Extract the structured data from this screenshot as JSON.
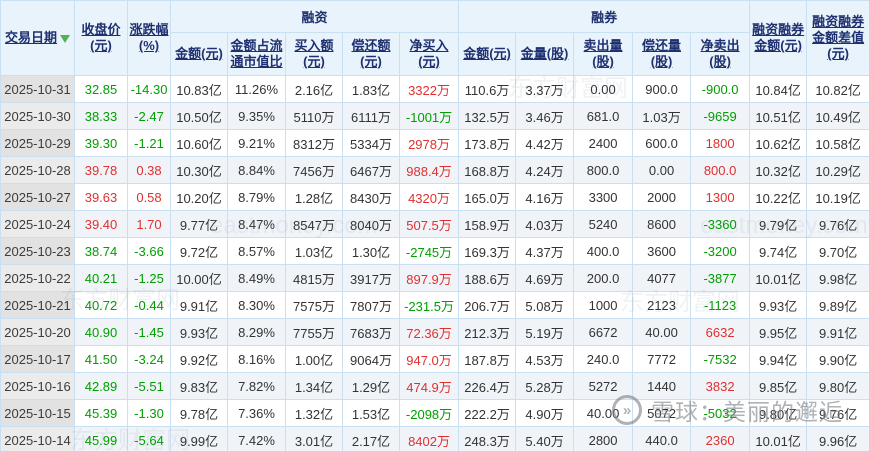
{
  "palette": {
    "up_red": "#e03030",
    "down_green": "#009e00",
    "header_text_navy": "#1f3070",
    "header_bg": "#e9f3fb",
    "grid_border": "#c9e0f2",
    "date_col_bg": "#e2e2e2",
    "zebra_row_bg": "#f0f4f8",
    "sort_arrow_green": "#54b054"
  },
  "header": {
    "date": "交易日期",
    "close": "收盘价\n(元)",
    "change": "涨跌幅\n(%)",
    "financing_group": "融资",
    "lending_group": "融券",
    "financing_cols": [
      "金额(元)",
      "金额占流\n通市值比",
      "买入额\n(元)",
      "偿还额\n(元)",
      "净买入\n(元)"
    ],
    "lending_cols": [
      "金额(元)",
      "金量(股)",
      "卖出量\n(股)",
      "偿还量\n(股)",
      "净卖出\n(股)"
    ],
    "balance": "融资融券\n金额(元)",
    "diff": "融资融券\n金额差值\n(元)"
  },
  "watermarks": {
    "brand": "东方财富网",
    "domain": "eastmoney.com",
    "xueqiu": "雪球：美丽的邂逅",
    "xueqiu_logo": "xueqiu-circle-logo"
  },
  "table": {
    "cell_names": [
      "close-price",
      "change-percent",
      "financing-amount",
      "financing-marketcap-ratio",
      "financing-buy-amount",
      "financing-repay-amount",
      "financing-net-buy",
      "lending-amount",
      "lending-volume",
      "lending-sell-volume",
      "lending-repay-volume",
      "lending-net-sell",
      "margin-balance",
      "margin-amount-diff"
    ],
    "rows": [
      {
        "date": "2025-10-31",
        "values": [
          "32.85",
          "-14.30",
          "10.83亿",
          "11.26%",
          "2.16亿",
          "1.83亿",
          "3322万",
          "110.6万",
          "3.37万",
          "0.00",
          "900.0",
          "-900.0",
          "10.84亿",
          "10.82亿"
        ],
        "colors": [
          "down",
          "down",
          null,
          null,
          null,
          null,
          "up",
          null,
          null,
          null,
          null,
          "down",
          null,
          null
        ]
      },
      {
        "date": "2025-10-30",
        "values": [
          "38.33",
          "-2.47",
          "10.50亿",
          "9.35%",
          "5110万",
          "6111万",
          "-1001万",
          "132.5万",
          "3.46万",
          "681.0",
          "1.03万",
          "-9659",
          "10.51亿",
          "10.49亿"
        ],
        "colors": [
          "down",
          "down",
          null,
          null,
          null,
          null,
          "down",
          null,
          null,
          null,
          null,
          "down",
          null,
          null
        ]
      },
      {
        "date": "2025-10-29",
        "values": [
          "39.30",
          "-1.21",
          "10.60亿",
          "9.21%",
          "8312万",
          "5334万",
          "2978万",
          "173.8万",
          "4.42万",
          "2400",
          "600.0",
          "1800",
          "10.62亿",
          "10.58亿"
        ],
        "colors": [
          "down",
          "down",
          null,
          null,
          null,
          null,
          "up",
          null,
          null,
          null,
          null,
          "up",
          null,
          null
        ]
      },
      {
        "date": "2025-10-28",
        "values": [
          "39.78",
          "0.38",
          "10.30亿",
          "8.84%",
          "7456万",
          "6467万",
          "988.4万",
          "168.8万",
          "4.24万",
          "800.0",
          "0.00",
          "800.0",
          "10.32亿",
          "10.29亿"
        ],
        "colors": [
          "up",
          "up",
          null,
          null,
          null,
          null,
          "up",
          null,
          null,
          null,
          null,
          "up",
          null,
          null
        ]
      },
      {
        "date": "2025-10-27",
        "values": [
          "39.63",
          "0.58",
          "10.20亿",
          "8.79%",
          "1.28亿",
          "8430万",
          "4320万",
          "165.0万",
          "4.16万",
          "3300",
          "2000",
          "1300",
          "10.22亿",
          "10.19亿"
        ],
        "colors": [
          "up",
          "up",
          null,
          null,
          null,
          null,
          "up",
          null,
          null,
          null,
          null,
          "up",
          null,
          null
        ]
      },
      {
        "date": "2025-10-24",
        "values": [
          "39.40",
          "1.70",
          "9.77亿",
          "8.47%",
          "8547万",
          "8040万",
          "507.5万",
          "158.9万",
          "4.03万",
          "5240",
          "8600",
          "-3360",
          "9.79亿",
          "9.76亿"
        ],
        "colors": [
          "up",
          "up",
          null,
          null,
          null,
          null,
          "up",
          null,
          null,
          null,
          null,
          "down",
          null,
          null
        ]
      },
      {
        "date": "2025-10-23",
        "values": [
          "38.74",
          "-3.66",
          "9.72亿",
          "8.57%",
          "1.03亿",
          "1.30亿",
          "-2745万",
          "169.3万",
          "4.37万",
          "400.0",
          "3600",
          "-3200",
          "9.74亿",
          "9.70亿"
        ],
        "colors": [
          "down",
          "down",
          null,
          null,
          null,
          null,
          "down",
          null,
          null,
          null,
          null,
          "down",
          null,
          null
        ]
      },
      {
        "date": "2025-10-22",
        "values": [
          "40.21",
          "-1.25",
          "10.00亿",
          "8.49%",
          "4815万",
          "3917万",
          "897.9万",
          "188.6万",
          "4.69万",
          "200.0",
          "4077",
          "-3877",
          "10.01亿",
          "9.98亿"
        ],
        "colors": [
          "down",
          "down",
          null,
          null,
          null,
          null,
          "up",
          null,
          null,
          null,
          null,
          "down",
          null,
          null
        ]
      },
      {
        "date": "2025-10-21",
        "values": [
          "40.72",
          "-0.44",
          "9.91亿",
          "8.30%",
          "7575万",
          "7807万",
          "-231.5万",
          "206.7万",
          "5.08万",
          "1000",
          "2123",
          "-1123",
          "9.93亿",
          "9.89亿"
        ],
        "colors": [
          "down",
          "down",
          null,
          null,
          null,
          null,
          "down",
          null,
          null,
          null,
          null,
          "down",
          null,
          null
        ]
      },
      {
        "date": "2025-10-20",
        "values": [
          "40.90",
          "-1.45",
          "9.93亿",
          "8.29%",
          "7755万",
          "7683万",
          "72.36万",
          "212.3万",
          "5.19万",
          "6672",
          "40.00",
          "6632",
          "9.95亿",
          "9.91亿"
        ],
        "colors": [
          "down",
          "down",
          null,
          null,
          null,
          null,
          "up",
          null,
          null,
          null,
          null,
          "up",
          null,
          null
        ]
      },
      {
        "date": "2025-10-17",
        "values": [
          "41.50",
          "-3.24",
          "9.92亿",
          "8.16%",
          "1.00亿",
          "9064万",
          "947.0万",
          "187.8万",
          "4.53万",
          "240.0",
          "7772",
          "-7532",
          "9.94亿",
          "9.90亿"
        ],
        "colors": [
          "down",
          "down",
          null,
          null,
          null,
          null,
          "up",
          null,
          null,
          null,
          null,
          "down",
          null,
          null
        ]
      },
      {
        "date": "2025-10-16",
        "values": [
          "42.89",
          "-5.51",
          "9.83亿",
          "7.82%",
          "1.34亿",
          "1.29亿",
          "474.9万",
          "226.4万",
          "5.28万",
          "5272",
          "1440",
          "3832",
          "9.85亿",
          "9.80亿"
        ],
        "colors": [
          "down",
          "down",
          null,
          null,
          null,
          null,
          "up",
          null,
          null,
          null,
          null,
          "up",
          null,
          null
        ]
      },
      {
        "date": "2025-10-15",
        "values": [
          "45.39",
          "-1.30",
          "9.78亿",
          "7.36%",
          "1.32亿",
          "1.53亿",
          "-2098万",
          "222.2万",
          "4.90万",
          "40.00",
          "5072",
          "-5032",
          "9.80亿",
          "9.76亿"
        ],
        "colors": [
          "down",
          "down",
          null,
          null,
          null,
          null,
          "down",
          null,
          null,
          null,
          null,
          "down",
          null,
          null
        ]
      },
      {
        "date": "2025-10-14",
        "values": [
          "45.99",
          "-5.64",
          "9.99亿",
          "7.42%",
          "3.01亿",
          "2.17亿",
          "8402万",
          "248.3万",
          "5.40万",
          "2800",
          "440.0",
          "2360",
          "10.01亿",
          "9.96亿"
        ],
        "colors": [
          "down",
          "down",
          null,
          null,
          null,
          null,
          "up",
          null,
          null,
          null,
          null,
          "up",
          null,
          null
        ]
      }
    ]
  }
}
